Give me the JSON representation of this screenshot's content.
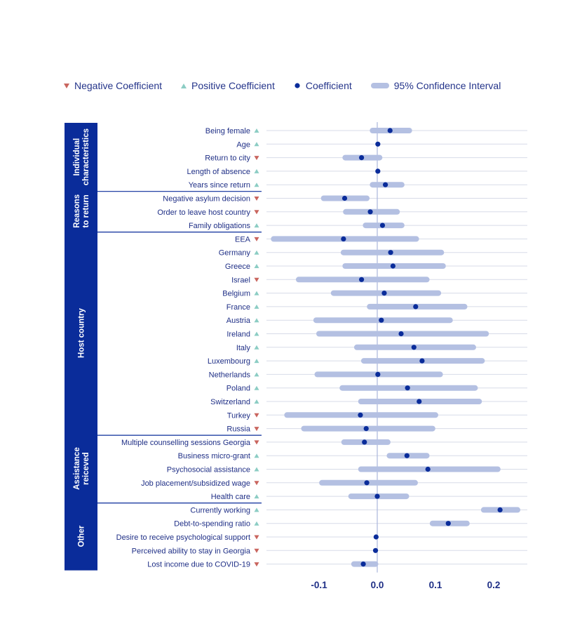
{
  "legend": {
    "negative": "Negative Coefficient",
    "positive": "Positive Coefficient",
    "coefficient": "Coefficient",
    "ci": "95% Confidence Interval"
  },
  "colors": {
    "navy": "#0a2c9a",
    "ci": "#b4c0e2",
    "negative_marker": "#c9655e",
    "positive_marker": "#8ccdc4",
    "grid": "#d7dbe8",
    "zero_line": "#aab6dd"
  },
  "chart_data": {
    "type": "coefficient-plot",
    "orientation": "horizontal",
    "x_ticks": [
      -0.1,
      0.0,
      0.1,
      0.2
    ],
    "x_tick_labels": [
      "-0.1",
      "0.0",
      "0.1",
      "0.2"
    ],
    "xlim": [
      -0.185,
      0.255
    ],
    "zero_line": 0,
    "groups": [
      {
        "label": "Individual characteristics",
        "label_lines": [
          "Individual",
          "characteristics"
        ],
        "rows": [
          0,
          4
        ]
      },
      {
        "label": "Reasons to return",
        "label_lines": [
          "Reasons",
          "to return"
        ],
        "rows": [
          5,
          7
        ]
      },
      {
        "label": "Host country",
        "label_lines": [
          "Host country"
        ],
        "rows": [
          8,
          22
        ]
      },
      {
        "label": "Assistance reiceved",
        "label_lines": [
          "Assistance",
          "reiceved"
        ],
        "rows": [
          23,
          27
        ]
      },
      {
        "label": "Other",
        "label_lines": [
          "Other"
        ],
        "rows": [
          28,
          32
        ]
      }
    ],
    "rows": [
      {
        "label": "Being female",
        "sign": "positive",
        "coef": 0.022,
        "ci": [
          -0.008,
          0.055
        ]
      },
      {
        "label": "Age",
        "sign": "positive",
        "coef": 0.001,
        "ci": null
      },
      {
        "label": "Return to city",
        "sign": "negative",
        "coef": -0.027,
        "ci": [
          -0.055,
          0.004
        ]
      },
      {
        "label": "Length of absence",
        "sign": "positive",
        "coef": 0.001,
        "ci": null
      },
      {
        "label": "Years since return",
        "sign": "positive",
        "coef": 0.014,
        "ci": [
          -0.008,
          0.042
        ]
      },
      {
        "label": "Negative asylum decision",
        "sign": "negative",
        "coef": -0.056,
        "ci": [
          -0.092,
          -0.018
        ]
      },
      {
        "label": "Order to leave host country",
        "sign": "negative",
        "coef": -0.012,
        "ci": [
          -0.054,
          0.034
        ]
      },
      {
        "label": "Family obligations",
        "sign": "positive",
        "coef": 0.009,
        "ci": [
          -0.02,
          0.042
        ]
      },
      {
        "label": "EEA",
        "sign": "negative",
        "coef": -0.058,
        "ci": [
          -0.178,
          0.067
        ]
      },
      {
        "label": "Germany",
        "sign": "positive",
        "coef": 0.023,
        "ci": [
          -0.058,
          0.11
        ]
      },
      {
        "label": "Greece",
        "sign": "positive",
        "coef": 0.027,
        "ci": [
          -0.055,
          0.113
        ]
      },
      {
        "label": "Israel",
        "sign": "negative",
        "coef": -0.027,
        "ci": [
          -0.135,
          0.085
        ]
      },
      {
        "label": "Belgium",
        "sign": "positive",
        "coef": 0.012,
        "ci": [
          -0.075,
          0.105
        ]
      },
      {
        "label": "France",
        "sign": "positive",
        "coef": 0.066,
        "ci": [
          -0.013,
          0.15
        ]
      },
      {
        "label": "Austria",
        "sign": "positive",
        "coef": 0.007,
        "ci": [
          -0.105,
          0.125
        ]
      },
      {
        "label": "Ireland",
        "sign": "positive",
        "coef": 0.041,
        "ci": [
          -0.1,
          0.187
        ]
      },
      {
        "label": "Italy",
        "sign": "positive",
        "coef": 0.063,
        "ci": [
          -0.035,
          0.165
        ]
      },
      {
        "label": "Luxembourg",
        "sign": "positive",
        "coef": 0.077,
        "ci": [
          -0.023,
          0.18
        ]
      },
      {
        "label": "Netherlands",
        "sign": "positive",
        "coef": 0.001,
        "ci": [
          -0.103,
          0.108
        ]
      },
      {
        "label": "Poland",
        "sign": "positive",
        "coef": 0.052,
        "ci": [
          -0.06,
          0.168
        ]
      },
      {
        "label": "Switzerland",
        "sign": "positive",
        "coef": 0.072,
        "ci": [
          -0.028,
          0.175
        ]
      },
      {
        "label": "Turkey",
        "sign": "negative",
        "coef": -0.029,
        "ci": [
          -0.155,
          0.1
        ]
      },
      {
        "label": "Russia",
        "sign": "negative",
        "coef": -0.019,
        "ci": [
          -0.126,
          0.095
        ]
      },
      {
        "label": "Multiple counselling sessions Georgia",
        "sign": "negative",
        "coef": -0.022,
        "ci": [
          -0.057,
          0.018
        ]
      },
      {
        "label": "Business micro-grant",
        "sign": "positive",
        "coef": 0.051,
        "ci": [
          0.021,
          0.085
        ]
      },
      {
        "label": "Psychosocial assistance",
        "sign": "positive",
        "coef": 0.087,
        "ci": [
          -0.028,
          0.207
        ]
      },
      {
        "label": "Job placement/subsidized wage",
        "sign": "negative",
        "coef": -0.018,
        "ci": [
          -0.095,
          0.065
        ]
      },
      {
        "label": "Health care",
        "sign": "positive",
        "coef": 0.0,
        "ci": [
          -0.045,
          0.05
        ]
      },
      {
        "label": "Currently working",
        "sign": "positive",
        "coef": 0.211,
        "ci": [
          0.183,
          0.241
        ]
      },
      {
        "label": "Debt-to-spending ratio",
        "sign": "positive",
        "coef": 0.122,
        "ci": [
          0.095,
          0.154
        ]
      },
      {
        "label": "Desire to receive psychological support",
        "sign": "negative",
        "coef": -0.002,
        "ci": null
      },
      {
        "label": "Perceived ability to stay in Georgia",
        "sign": "negative",
        "coef": -0.003,
        "ci": null
      },
      {
        "label": "Lost income due to COVID-19",
        "sign": "negative",
        "coef": -0.024,
        "ci": [
          -0.04,
          -0.003
        ]
      }
    ]
  }
}
